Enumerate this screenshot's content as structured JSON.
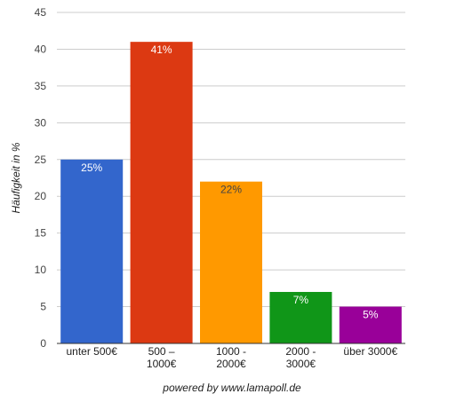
{
  "chart_data": {
    "type": "bar",
    "categories": [
      [
        "unter 500€"
      ],
      [
        "500 –",
        "1000€"
      ],
      [
        "1000 -",
        "2000€"
      ],
      [
        "2000 -",
        "3000€"
      ],
      [
        "über 3000€"
      ]
    ],
    "values": [
      25,
      41,
      22,
      7,
      5
    ],
    "value_labels": [
      "25%",
      "41%",
      "22%",
      "7%",
      "5%"
    ],
    "colors": [
      "#3366cc",
      "#dc3912",
      "#ff9900",
      "#109618",
      "#990099"
    ],
    "label_colors": [
      "#ffffff",
      "#ffffff",
      "#444444",
      "#ffffff",
      "#ffffff"
    ],
    "ylabel": "Häufigkeit in %",
    "ylim": [
      0,
      45
    ],
    "yticks": [
      0,
      5,
      10,
      15,
      20,
      25,
      30,
      35,
      40,
      45
    ],
    "grid": true
  },
  "footer": {
    "text": "powered by www.lamapoll.de"
  }
}
